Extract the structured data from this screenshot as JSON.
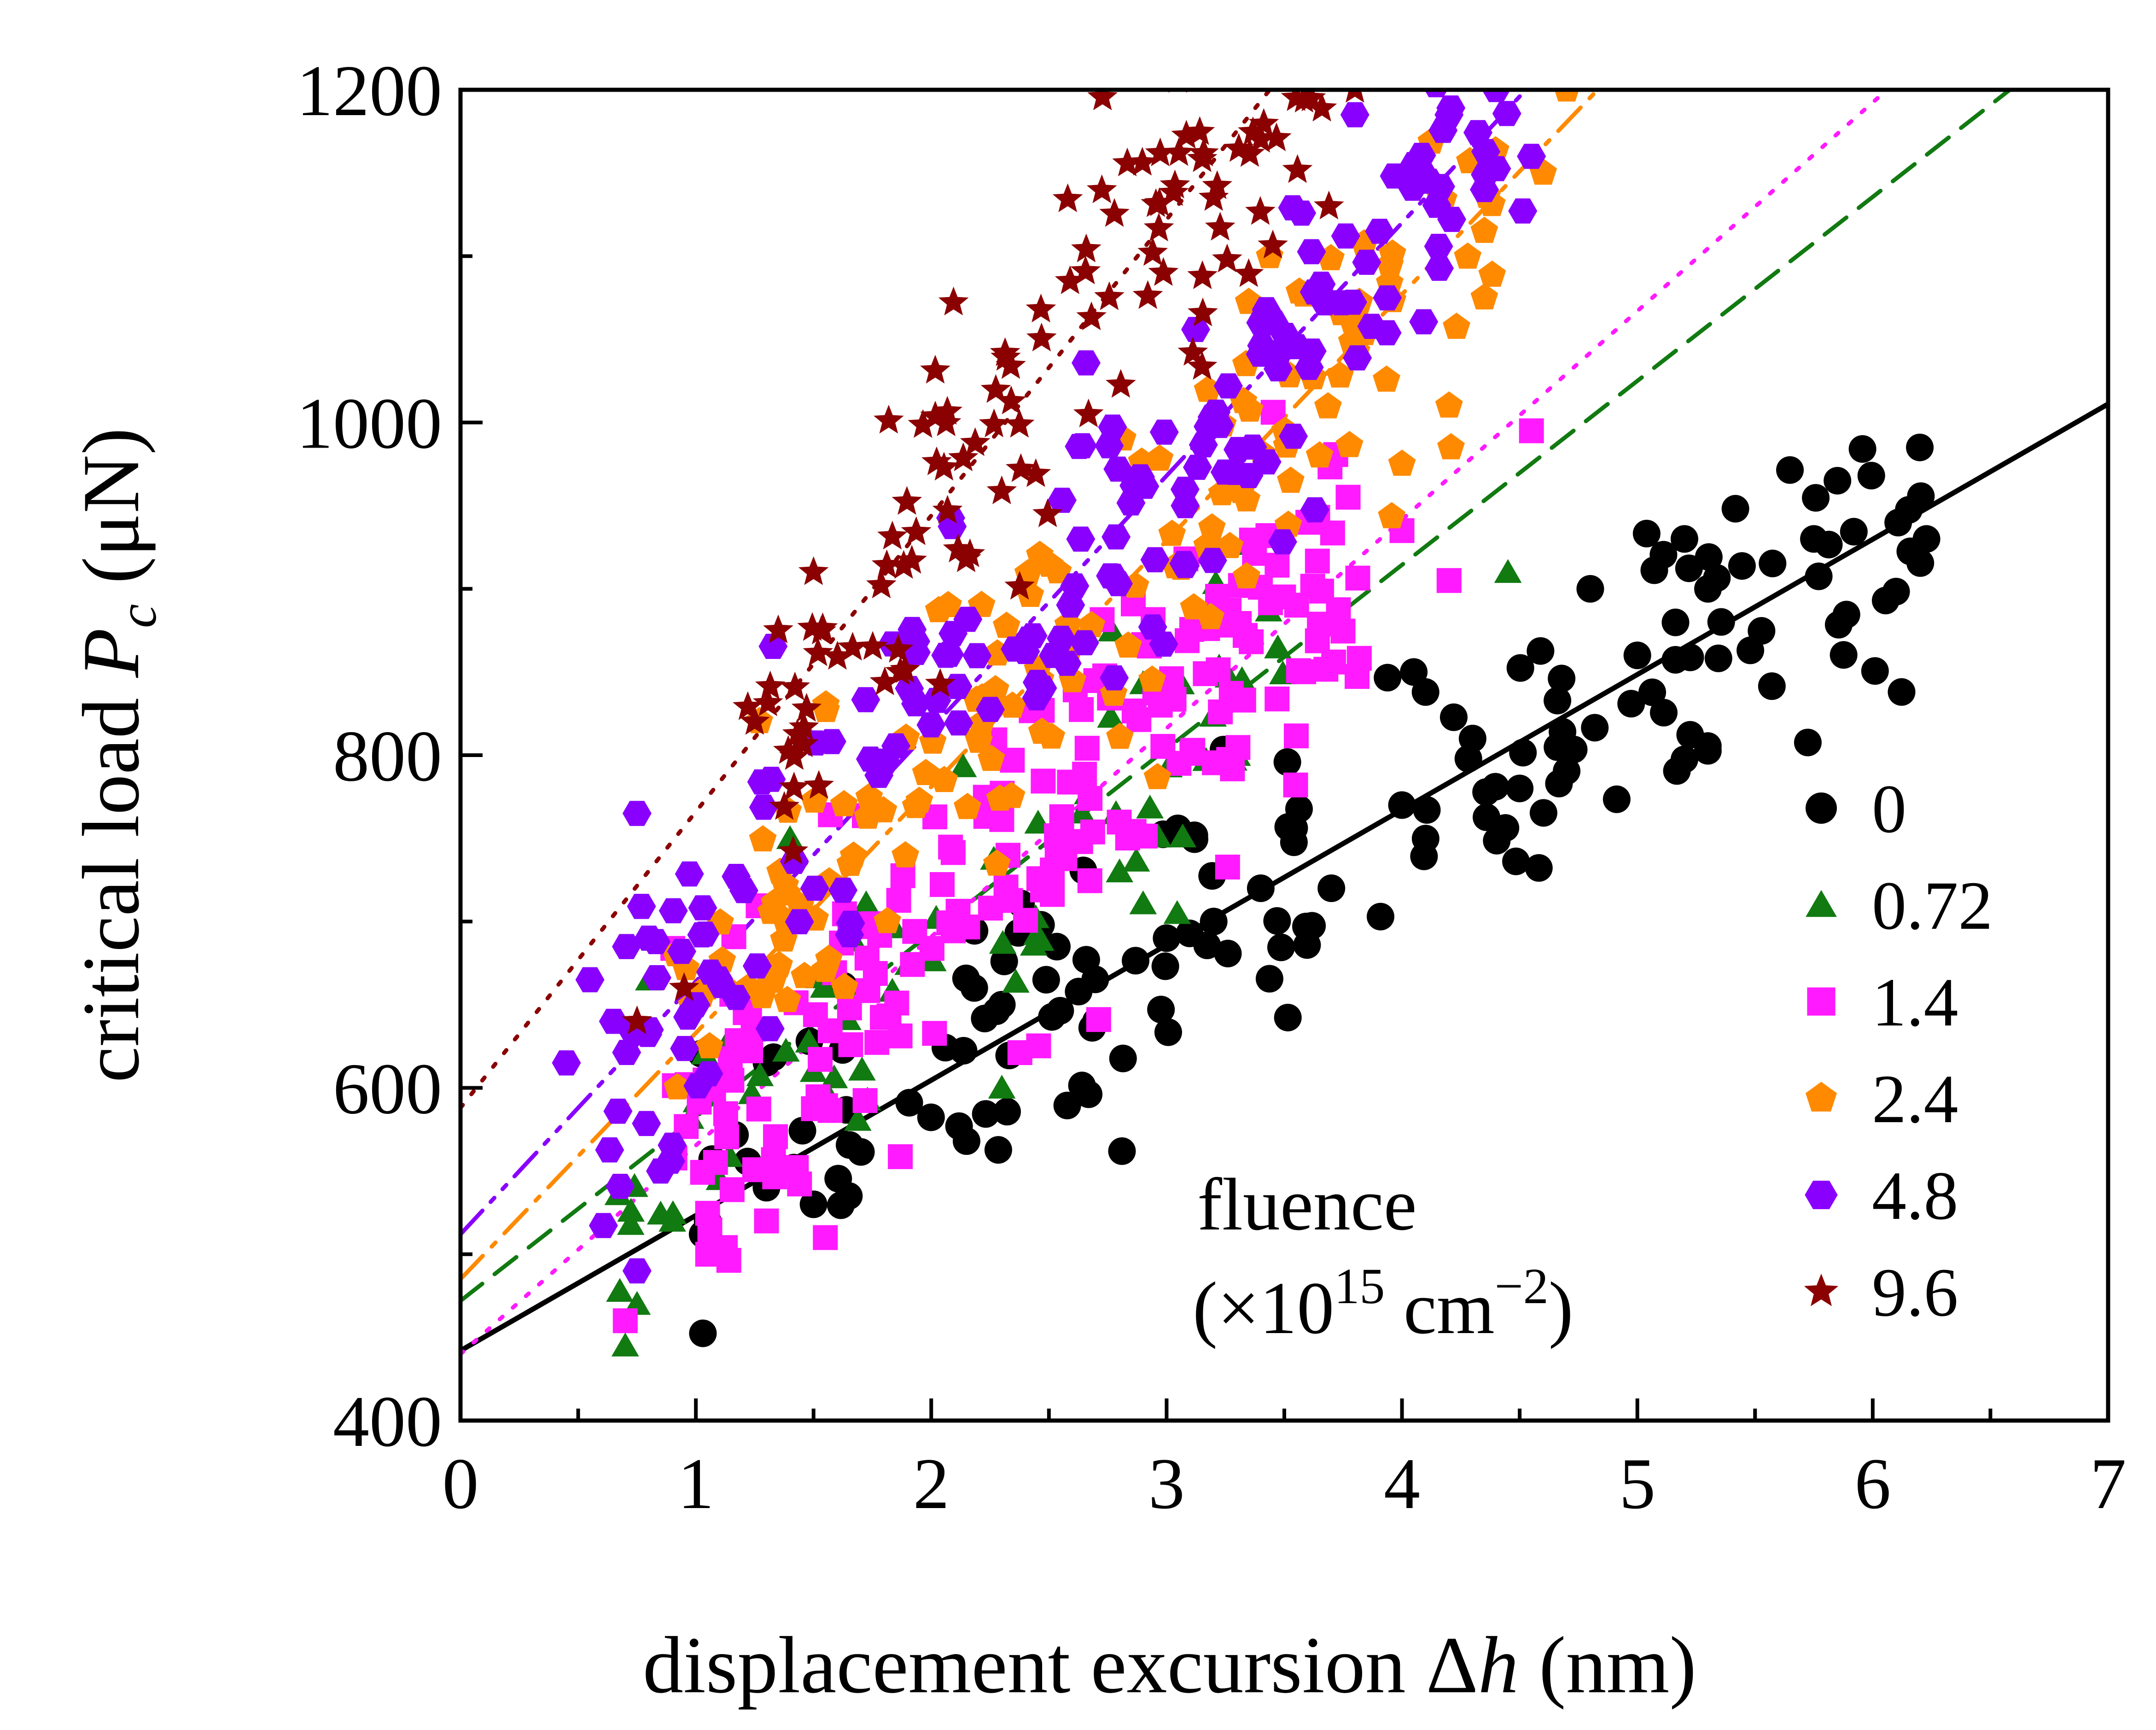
{
  "chart_data": {
    "type": "scatter",
    "title": "",
    "xlabel": {
      "prefix": "displacement excursion ",
      "symbol": "Δ",
      "var": "h",
      "unit": " (nm)"
    },
    "ylabel": {
      "prefix": "critical load ",
      "var": "P",
      "sub": "c",
      "unit": " (μN)"
    },
    "xlim": [
      0,
      7
    ],
    "ylim": [
      400,
      1200
    ],
    "xticks": [
      "0",
      "1",
      "2",
      "3",
      "4",
      "5",
      "6",
      "7"
    ],
    "yticks": [
      "400",
      "600",
      "800",
      "1000",
      "1200"
    ],
    "grid": false,
    "legend_position": "bottom-right",
    "annotation": {
      "line1": "fluence",
      "line2_open": "(×10",
      "line2_exp": "15",
      "line2_unit": " cm",
      "line2_unit_exp": "−2",
      "line2_close": ")"
    },
    "series": [
      {
        "name": "0",
        "marker": "circle",
        "color": "#000000",
        "line_style": "solid",
        "fit": {
          "intercept": 442,
          "slope": 81.3
        },
        "cloud": {
          "xmin": 1.0,
          "xmax": 6.25,
          "sd": 45,
          "n": 150
        },
        "points": [
          [
            1.05,
            520
          ],
          [
            1.3,
            540
          ],
          [
            1.5,
            530
          ],
          [
            1.65,
            535
          ],
          [
            2.15,
            568
          ],
          [
            2.3,
            650
          ],
          [
            2.7,
            640
          ],
          [
            3.0,
            690
          ],
          [
            3.2,
            700
          ],
          [
            3.4,
            720
          ],
          [
            3.7,
            720
          ],
          [
            4.0,
            770
          ],
          [
            4.05,
            850
          ],
          [
            4.3,
            810
          ],
          [
            4.5,
            780
          ],
          [
            4.8,
            900
          ],
          [
            5.0,
            860
          ],
          [
            5.2,
            930
          ],
          [
            5.3,
            900
          ],
          [
            5.75,
            930
          ],
          [
            5.85,
            965
          ],
          [
            6.2,
            985
          ]
        ]
      },
      {
        "name": "0.72",
        "marker": "triangle",
        "color": "#117a11",
        "line_style": "dashed",
        "fit": {
          "intercept": 472,
          "slope": 110.6
        },
        "cloud": {
          "xmin": 0.65,
          "xmax": 3.5,
          "sd": 45,
          "n": 70
        },
        "points": [
          [
            0.7,
            445
          ],
          [
            0.75,
            470
          ],
          [
            0.8,
            665
          ],
          [
            0.9,
            520
          ],
          [
            1.1,
            545
          ],
          [
            1.4,
            750
          ],
          [
            1.5,
            610
          ],
          [
            2.3,
            600
          ],
          [
            2.8,
            730
          ],
          [
            3.3,
            800
          ],
          [
            3.8,
            855
          ],
          [
            4.45,
            910
          ]
        ]
      },
      {
        "name": "1.4",
        "marker": "square",
        "color": "#ff1aff",
        "line_style": "dotted",
        "fit": {
          "intercept": 440,
          "slope": 125.4
        },
        "cloud": {
          "xmin": 0.9,
          "xmax": 3.9,
          "sd": 48,
          "n": 190
        },
        "points": [
          [
            0.7,
            460
          ],
          [
            1.05,
            500
          ],
          [
            1.3,
            520
          ],
          [
            1.55,
            510
          ],
          [
            3.6,
            940
          ],
          [
            4.0,
            935
          ],
          [
            4.2,
            905
          ],
          [
            4.55,
            995
          ]
        ]
      },
      {
        "name": "2.4",
        "marker": "pentagon",
        "color": "#ff8a00",
        "line_style": "dashdot",
        "fit": {
          "intercept": 485,
          "slope": 148
        },
        "cloud": {
          "xmin": 0.9,
          "xmax": 4.4,
          "sd": 48,
          "n": 150
        },
        "points": [
          [
            3.65,
            980
          ],
          [
            4.0,
            975
          ],
          [
            4.2,
            1010
          ],
          [
            4.35,
            1115
          ],
          [
            4.35,
            1075
          ],
          [
            4.6,
            1150
          ],
          [
            4.7,
            1200
          ]
        ]
      },
      {
        "name": "4.8",
        "marker": "hexagon",
        "color": "#8a00ff",
        "line_style": "dashdotdot",
        "fit": {
          "intercept": 512,
          "slope": 152
        },
        "cloud": {
          "xmin": 0.6,
          "xmax": 4.6,
          "sd": 48,
          "n": 180
        },
        "points": [
          [
            0.45,
            615
          ],
          [
            0.55,
            665
          ],
          [
            0.65,
            640
          ],
          [
            0.75,
            765
          ],
          [
            0.8,
            690
          ],
          [
            0.75,
            490
          ],
          [
            0.85,
            550
          ],
          [
            1.0,
            650
          ],
          [
            3.4,
            1060
          ],
          [
            3.8,
            1185
          ],
          [
            4.2,
            1185
          ],
          [
            4.35,
            1140
          ],
          [
            4.55,
            1160
          ]
        ]
      },
      {
        "name": "9.6",
        "marker": "star",
        "color": "#8b0000",
        "line_style": "dotted",
        "fit": {
          "intercept": 588,
          "slope": 178
        },
        "cloud": {
          "xmin": 1.2,
          "xmax": 3.7,
          "sd": 55,
          "n": 130
        },
        "points": [
          [
            0.75,
            640
          ],
          [
            0.95,
            660
          ],
          [
            1.25,
            820
          ],
          [
            1.35,
            875
          ],
          [
            1.5,
            910
          ],
          [
            3.2,
            1135
          ],
          [
            3.4,
            1170
          ],
          [
            3.55,
            1195
          ],
          [
            3.8,
            1200
          ]
        ]
      }
    ]
  }
}
